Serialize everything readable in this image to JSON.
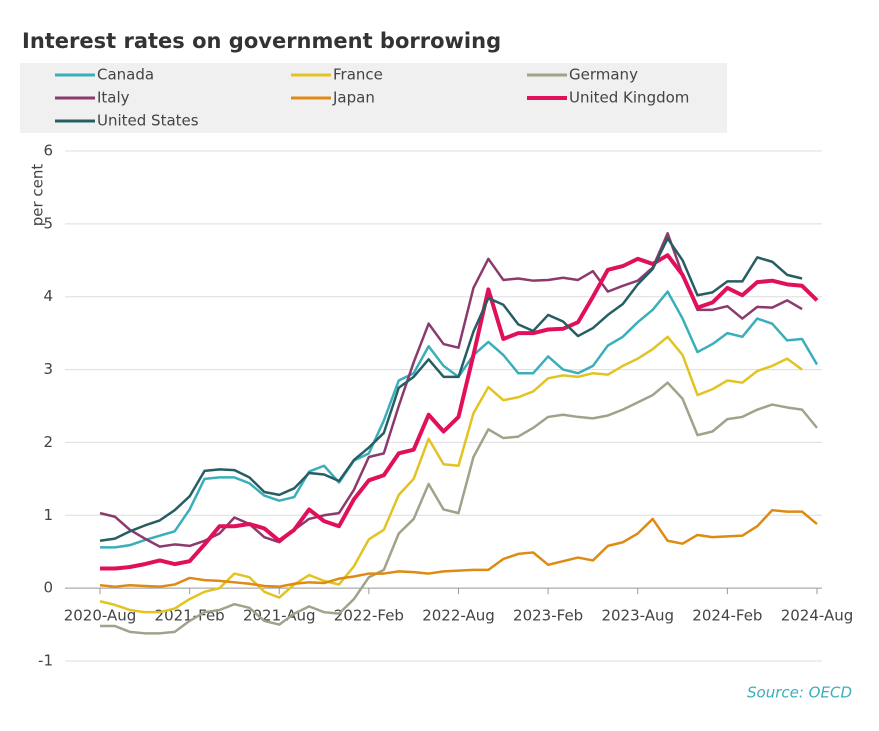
{
  "chart_data": {
    "type": "line",
    "title": "Interest rates on government borrowing",
    "y_label": "per cent",
    "source": "Source: OECD",
    "categories": [
      "2020-Aug",
      null,
      null,
      null,
      null,
      null,
      "2021-Feb",
      null,
      null,
      null,
      null,
      null,
      "2021-Aug",
      null,
      null,
      null,
      null,
      null,
      "2022-Feb",
      null,
      null,
      null,
      null,
      null,
      "2022-Aug",
      null,
      null,
      null,
      null,
      null,
      "2023-Feb",
      null,
      null,
      null,
      null,
      null,
      "2023-Aug",
      null,
      null,
      null,
      null,
      null,
      "2024-Feb",
      null,
      null,
      null,
      null,
      null,
      "2024-Aug"
    ],
    "ylim": [
      -1,
      6
    ],
    "yticks": [
      -1,
      0,
      1,
      2,
      3,
      4,
      5,
      6
    ],
    "grid": true,
    "series": [
      {
        "name": "Canada",
        "color": "#3aafb9",
        "values": [
          0.56,
          0.56,
          0.59,
          0.66,
          0.72,
          0.78,
          1.08,
          1.5,
          1.52,
          1.52,
          1.44,
          1.27,
          1.2,
          1.25,
          1.6,
          1.68,
          1.45,
          1.75,
          1.85,
          2.3,
          2.85,
          2.95,
          3.32,
          3.05,
          2.9,
          3.2,
          3.38,
          3.2,
          2.95,
          2.95,
          3.18,
          3.0,
          2.95,
          3.05,
          3.33,
          3.45,
          3.65,
          3.82,
          4.07,
          3.7,
          3.24,
          3.35,
          3.5,
          3.45,
          3.7,
          3.63,
          3.4,
          3.42,
          3.07
        ]
      },
      {
        "name": "France",
        "color": "#e3c322",
        "values": [
          -0.18,
          -0.23,
          -0.3,
          -0.33,
          -0.33,
          -0.28,
          -0.15,
          -0.05,
          0.0,
          0.2,
          0.15,
          -0.05,
          -0.13,
          0.05,
          0.18,
          0.1,
          0.05,
          0.3,
          0.67,
          0.8,
          1.28,
          1.5,
          2.05,
          1.7,
          1.68,
          2.4,
          2.76,
          2.58,
          2.62,
          2.7,
          2.88,
          2.92,
          2.9,
          2.95,
          2.93,
          3.05,
          3.15,
          3.28,
          3.45,
          3.2,
          2.65,
          2.73,
          2.85,
          2.82,
          2.98,
          3.05,
          3.15,
          3.0,
          null
        ]
      },
      {
        "name": "Germany",
        "color": "#a0a38a",
        "values": [
          -0.52,
          -0.52,
          -0.6,
          -0.62,
          -0.62,
          -0.6,
          -0.45,
          -0.33,
          -0.3,
          -0.22,
          -0.27,
          -0.45,
          -0.5,
          -0.35,
          -0.25,
          -0.33,
          -0.35,
          -0.15,
          0.15,
          0.25,
          0.75,
          0.95,
          1.43,
          1.08,
          1.03,
          1.8,
          2.18,
          2.06,
          2.08,
          2.2,
          2.35,
          2.38,
          2.35,
          2.33,
          2.37,
          2.45,
          2.55,
          2.65,
          2.82,
          2.6,
          2.1,
          2.15,
          2.32,
          2.35,
          2.45,
          2.52,
          2.48,
          2.45,
          2.2
        ]
      },
      {
        "name": "Italy",
        "color": "#8c3a6e",
        "values": [
          1.03,
          0.98,
          0.8,
          0.68,
          0.57,
          0.6,
          0.58,
          0.65,
          0.75,
          0.97,
          0.88,
          0.7,
          0.63,
          0.8,
          0.95,
          1.0,
          1.03,
          1.35,
          1.8,
          1.85,
          2.5,
          3.1,
          3.63,
          3.35,
          3.3,
          4.12,
          4.52,
          4.23,
          4.25,
          4.22,
          4.23,
          4.26,
          4.23,
          4.35,
          4.07,
          4.15,
          4.22,
          4.4,
          4.87,
          4.3,
          3.82,
          3.82,
          3.87,
          3.7,
          3.86,
          3.85,
          3.95,
          3.83,
          null
        ]
      },
      {
        "name": "Japan",
        "color": "#de8a13",
        "values": [
          0.04,
          0.02,
          0.04,
          0.03,
          0.02,
          0.05,
          0.14,
          0.11,
          0.1,
          0.08,
          0.06,
          0.03,
          0.02,
          0.06,
          0.08,
          0.07,
          0.13,
          0.16,
          0.2,
          0.2,
          0.23,
          0.22,
          0.2,
          0.23,
          0.24,
          0.25,
          0.25,
          0.4,
          0.47,
          0.49,
          0.32,
          0.37,
          0.42,
          0.38,
          0.58,
          0.63,
          0.75,
          0.95,
          0.65,
          0.61,
          0.73,
          0.7,
          0.71,
          0.72,
          0.85,
          1.07,
          1.05,
          1.05,
          0.88
        ]
      },
      {
        "name": "United Kingdom",
        "color": "#e0105a",
        "values": [
          0.27,
          0.27,
          0.29,
          0.33,
          0.38,
          0.33,
          0.37,
          0.6,
          0.85,
          0.85,
          0.88,
          0.82,
          0.65,
          0.8,
          1.08,
          0.92,
          0.85,
          1.22,
          1.48,
          1.55,
          1.85,
          1.9,
          2.38,
          2.15,
          2.35,
          3.2,
          4.1,
          3.42,
          3.5,
          3.5,
          3.55,
          3.56,
          3.65,
          4.0,
          4.37,
          4.42,
          4.52,
          4.45,
          4.57,
          4.3,
          3.85,
          3.92,
          4.12,
          4.02,
          4.2,
          4.22,
          4.17,
          4.15,
          3.95
        ]
      },
      {
        "name": "United States",
        "color": "#275e63",
        "values": [
          0.65,
          0.68,
          0.78,
          0.86,
          0.93,
          1.07,
          1.26,
          1.61,
          1.63,
          1.62,
          1.52,
          1.32,
          1.28,
          1.37,
          1.58,
          1.56,
          1.47,
          1.76,
          1.93,
          2.13,
          2.75,
          2.9,
          3.14,
          2.9,
          2.9,
          3.52,
          3.98,
          3.89,
          3.62,
          3.53,
          3.75,
          3.66,
          3.46,
          3.57,
          3.75,
          3.9,
          4.17,
          4.38,
          4.8,
          4.5,
          4.02,
          4.06,
          4.21,
          4.21,
          4.54,
          4.48,
          4.3,
          4.25,
          null
        ]
      }
    ]
  }
}
